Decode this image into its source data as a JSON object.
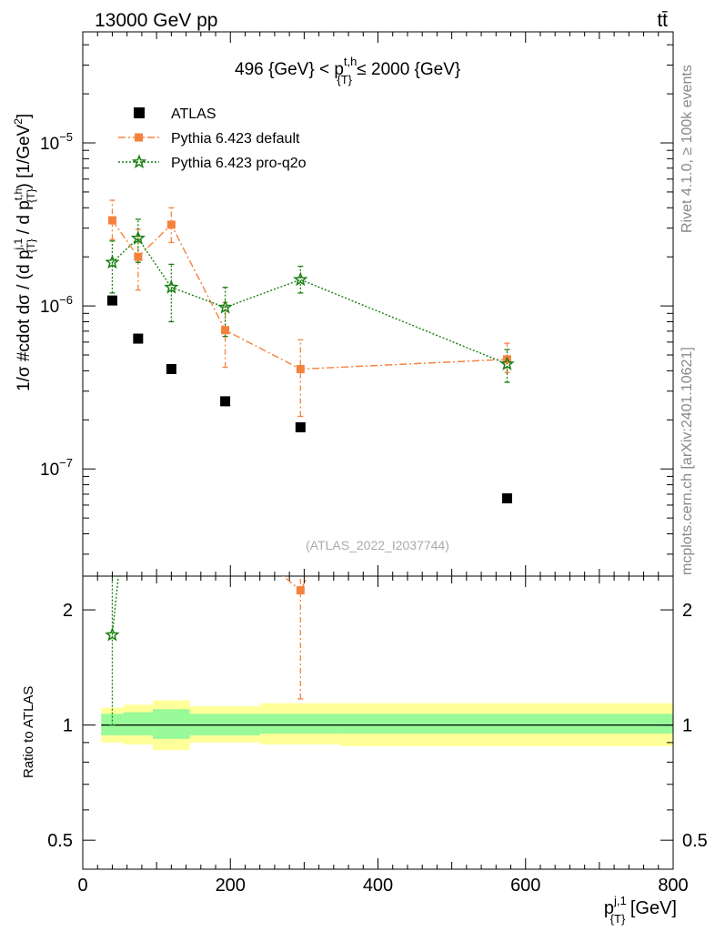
{
  "header": {
    "beam": "13000 GeV pp",
    "process": "tt̄",
    "cut_label": "496 {GeV} < p",
    "cut_sup": "t,h",
    "cut_sub": "{T}",
    "cut_rest": " ≤ 2000 {GeV}",
    "analysis": "(ATLAS_2022_I2037744)",
    "side_rivet": "Rivet 4.1.0, ≥ 100k events",
    "side_mcplots": "mcplots.cern.ch [arXiv:2401.10621]"
  },
  "colors": {
    "data": "#000000",
    "default": "#f5823c",
    "proq2o": "#1a7f12",
    "band_inner": "#98fa98",
    "band_outer": "#ffff99"
  },
  "chart_data": [
    {
      "type": "scatter",
      "title": "496 {GeV} < p_{T}^{t,h} ≤ 2000 {GeV}",
      "ylabel": "1/σ #cdot dσ / (d p_{T}^{j,1} / d p_{T}^{t,h}) [1/GeV^2]",
      "yscale": "log",
      "xlim": [
        0,
        800
      ],
      "ylim": [
        2.2e-08,
        4.8e-05
      ],
      "y_ticks": [
        {
          "value": 1e-07,
          "base": "10",
          "exp": "−7"
        },
        {
          "value": 1e-06,
          "base": "10",
          "exp": "−6"
        },
        {
          "value": 1e-05,
          "base": "10",
          "exp": "−5"
        }
      ],
      "legend": [
        "ATLAS",
        "Pythia 6.423 default",
        "Pythia 6.423 pro-q2o"
      ],
      "legend_position": "top-left",
      "series": [
        {
          "name": "ATLAS",
          "x": [
            40,
            75,
            120,
            193,
            295,
            575
          ],
          "y": [
            1.08e-06,
            6.3e-07,
            4.1e-07,
            2.6e-07,
            1.8e-07,
            6.6e-08
          ]
        },
        {
          "name": "Pythia 6.423 default",
          "x": [
            40,
            75,
            120,
            193,
            295,
            575
          ],
          "y": [
            3.35e-06,
            2e-06,
            3.15e-06,
            7.1e-07,
            4.1e-07,
            4.7e-07
          ],
          "err_low": [
            2.55e-06,
            1.25e-06,
            2.45e-06,
            4.2e-07,
            2.1e-07,
            3.9e-07
          ],
          "err_high": [
            4.45e-06,
            2.95e-06,
            4e-06,
            1.05e-06,
            6.2e-07,
            5.9e-07
          ]
        },
        {
          "name": "Pythia 6.423 pro-q2o",
          "x": [
            40,
            75,
            120,
            193,
            295,
            575
          ],
          "y": [
            1.85e-06,
            2.6e-06,
            1.3e-06,
            9.8e-07,
            1.45e-06,
            4.4e-07
          ],
          "err_low": [
            1.2e-06,
            1.85e-06,
            8e-07,
            6.5e-07,
            1.2e-06,
            3.4e-07
          ],
          "err_high": [
            2.5e-06,
            3.4e-06,
            1.8e-06,
            1.3e-06,
            1.75e-06,
            5.4e-07
          ]
        }
      ]
    },
    {
      "type": "scatter",
      "title": "Ratio to ATLAS",
      "ylabel": "Ratio to ATLAS",
      "xlabel": "p_{T}^{j,1} [GeV]",
      "yscale": "log",
      "xlim": [
        0,
        800
      ],
      "ylim": [
        0.42,
        2.45
      ],
      "x_ticks": [
        0,
        200,
        400,
        600,
        800
      ],
      "y_ticks": [
        0.5,
        1,
        2
      ],
      "y_tick_labels": [
        "0.5",
        "1",
        "2"
      ],
      "reference_line": 1,
      "bands": [
        {
          "x_low": 25,
          "x_high": 55,
          "inner": [
            0.94,
            1.07
          ],
          "outer": [
            0.9,
            1.11
          ]
        },
        {
          "x_low": 55,
          "x_high": 95,
          "inner": [
            0.94,
            1.08
          ],
          "outer": [
            0.89,
            1.13
          ]
        },
        {
          "x_low": 95,
          "x_high": 145,
          "inner": [
            0.92,
            1.1
          ],
          "outer": [
            0.86,
            1.16
          ]
        },
        {
          "x_low": 145,
          "x_high": 240,
          "inner": [
            0.94,
            1.07
          ],
          "outer": [
            0.9,
            1.12
          ]
        },
        {
          "x_low": 240,
          "x_high": 350,
          "inner": [
            0.95,
            1.07
          ],
          "outer": [
            0.89,
            1.14
          ]
        },
        {
          "x_low": 350,
          "x_high": 800,
          "inner": [
            0.95,
            1.07
          ],
          "outer": [
            0.88,
            1.14
          ]
        }
      ],
      "series": [
        {
          "name": "Pythia 6.423 default",
          "x": [
            295
          ],
          "y": [
            2.25
          ],
          "err_low": [
            1.17
          ],
          "err_high": [
            3.4
          ]
        },
        {
          "name": "Pythia 6.423 pro-q2o",
          "x": [
            40
          ],
          "y": [
            1.72
          ],
          "err_low": [
            1.0
          ],
          "err_high": [
            3.4
          ]
        }
      ]
    }
  ]
}
